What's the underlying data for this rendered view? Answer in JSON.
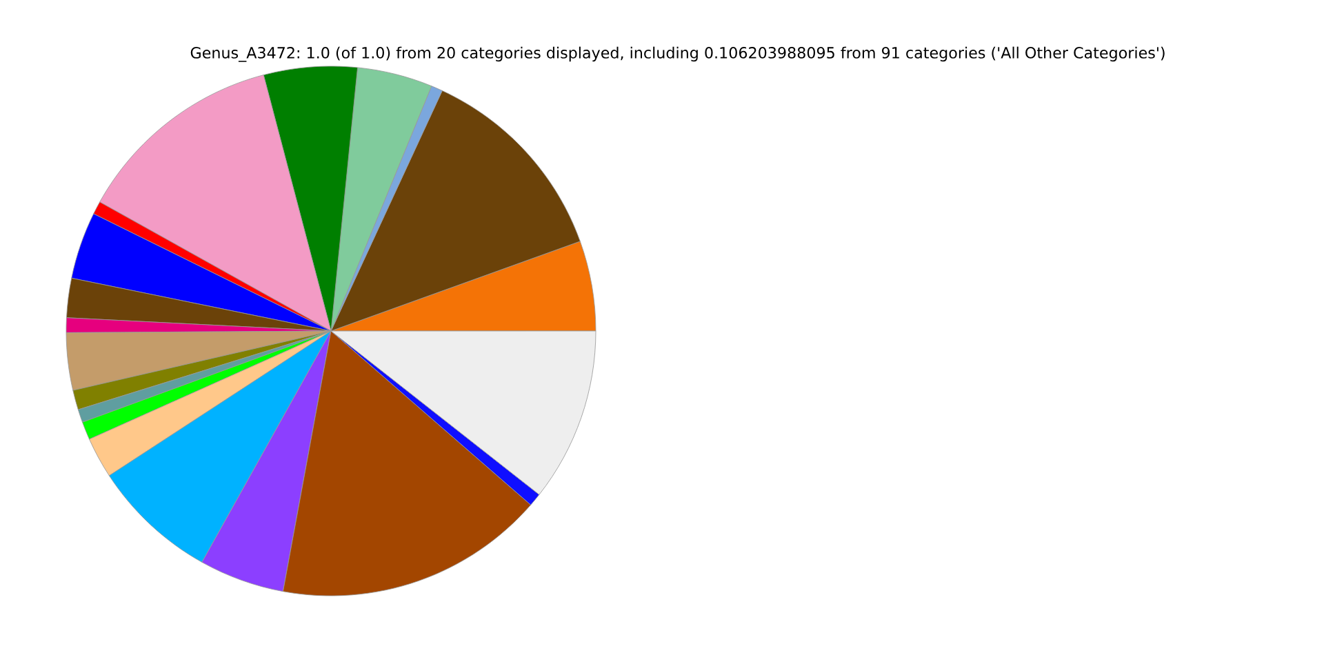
{
  "chart_data": {
    "type": "pie",
    "title": "Genus_A3472: 1.0 (of 1.0) from 20 categories displayed, including 0.106203988095 from 91 categories ('All Other Categories')",
    "categories": [
      null,
      null,
      null,
      null,
      null,
      null,
      null,
      null,
      null,
      null,
      null,
      null,
      null,
      null,
      null,
      null,
      null,
      null,
      null,
      null
    ],
    "values": [
      5.5,
      12.6,
      0.7,
      4.6,
      5.7,
      12.8,
      0.8,
      4.1,
      2.4,
      0.9,
      3.5,
      1.2,
      0.8,
      1.1,
      2.5,
      7.7,
      5.2,
      16.5,
      0.8,
      10.6
    ],
    "colors": [
      "#f47306",
      "#6b4209",
      "#7ba7dd",
      "#80cb9c",
      "#007f00",
      "#f39bc5",
      "#ff0000",
      "#0000ff",
      "#6b4209",
      "#e6007e",
      "#c49c6a",
      "#808000",
      "#5f9ea0",
      "#00ff00",
      "#ffc88a",
      "#00b2ff",
      "#8c3fff",
      "#a34600",
      "#0f0fff",
      "#eeeeee"
    ]
  }
}
